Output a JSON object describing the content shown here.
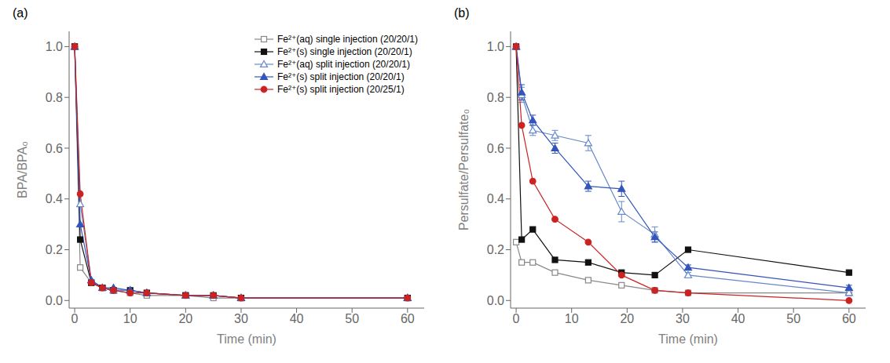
{
  "chart_data": [
    {
      "type": "line",
      "title": "(a)",
      "x_label": "Time (min)",
      "y_label": "BPA/BPA₀",
      "x": [
        0,
        1,
        3,
        5,
        7,
        10,
        13,
        20,
        25,
        30,
        60
      ],
      "series": [
        {
          "name": "Fe²⁺(aq) single injection (20/20/1)",
          "color": "#888888",
          "marker": "square_open",
          "values": [
            1.0,
            0.13,
            0.07,
            0.05,
            0.04,
            0.03,
            0.02,
            0.02,
            0.01,
            0.01,
            0.01
          ]
        },
        {
          "name": "Fe²⁺(s) single injection (20/20/1)",
          "color": "#111111",
          "marker": "square",
          "values": [
            1.0,
            0.24,
            0.07,
            0.05,
            0.04,
            0.04,
            0.03,
            0.02,
            0.02,
            0.01,
            0.01
          ]
        },
        {
          "name": "Fe²⁺(aq) split injection (20/20/1)",
          "color": "#6688cc",
          "marker": "triangle_open",
          "values": [
            1.0,
            0.38,
            0.08,
            0.05,
            0.04,
            0.04,
            0.03,
            0.02,
            0.02,
            0.01,
            0.01
          ]
        },
        {
          "name": "Fe²⁺(s) split injection (20/20/1)",
          "color": "#3355bb",
          "marker": "triangle",
          "values": [
            1.0,
            0.3,
            0.08,
            0.05,
            0.05,
            0.04,
            0.03,
            0.02,
            0.02,
            0.01,
            0.01
          ]
        },
        {
          "name": "Fe²⁺(s) split injection (20/25/1)",
          "color": "#cc2222",
          "marker": "circle",
          "values": [
            1.0,
            0.42,
            0.07,
            0.05,
            0.04,
            0.03,
            0.03,
            0.02,
            0.02,
            0.01,
            0.01
          ]
        }
      ],
      "xlim": [
        -1,
        63
      ],
      "xticks": [
        0,
        10,
        20,
        30,
        40,
        50,
        60
      ],
      "ylim": [
        -0.03,
        1.06
      ],
      "yticks": [
        {
          "value": 0,
          "label": "0.0"
        },
        0.2,
        0.4,
        0.6,
        0.8,
        {
          "value": 1,
          "label": "1.0"
        }
      ],
      "grid": false,
      "legend": "upper right"
    },
    {
      "type": "line",
      "title": "(b)",
      "x_label": "Time (min)",
      "y_label": "Persulfate/Persulfate₀",
      "x": [
        0,
        1,
        3,
        7,
        13,
        19,
        25,
        31,
        60
      ],
      "series": [
        {
          "name": "Fe²⁺(aq) single injection (20/20/1)",
          "color": "#888888",
          "marker": "square_open",
          "values": [
            0.23,
            0.15,
            0.15,
            0.11,
            0.08,
            0.06,
            0.04,
            0.03,
            0.03
          ]
        },
        {
          "name": "Fe²⁺(s) single injection (20/20/1)",
          "color": "#111111",
          "marker": "square",
          "values": [
            1.0,
            0.24,
            0.28,
            0.16,
            0.15,
            0.11,
            0.1,
            0.2,
            0.11
          ]
        },
        {
          "name": "Fe²⁺(aq) split injection (20/20/1)",
          "color": "#6688cc",
          "marker": "triangle_open",
          "values": [
            1.0,
            0.81,
            0.67,
            0.65,
            0.62,
            0.35,
            0.26,
            0.1,
            0.03
          ],
          "errors": [
            0.0,
            0.03,
            0.02,
            0.02,
            0.03,
            0.04,
            0.03,
            0.01,
            0.01
          ]
        },
        {
          "name": "Fe²⁺(s) split injection (20/20/1)",
          "color": "#3355bb",
          "marker": "triangle",
          "values": [
            1.0,
            0.82,
            0.71,
            0.6,
            0.45,
            0.44,
            0.25,
            0.13,
            0.05
          ],
          "errors": [
            0.0,
            0.03,
            0.02,
            0.02,
            0.02,
            0.03,
            0.02,
            0.01,
            0.01
          ]
        },
        {
          "name": "Fe²⁺(s) split injection (20/25/1)",
          "color": "#cc2222",
          "marker": "circle",
          "values": [
            1.0,
            0.69,
            0.47,
            0.32,
            0.23,
            0.1,
            0.04,
            0.03,
            0.0
          ]
        }
      ],
      "xlim": [
        -1,
        63
      ],
      "xticks": [
        0,
        10,
        20,
        30,
        40,
        50,
        60
      ],
      "ylim": [
        -0.03,
        1.06
      ],
      "yticks": [
        {
          "value": 0,
          "label": "0.0"
        },
        0.2,
        0.4,
        0.6,
        0.8,
        {
          "value": 1,
          "label": "1.0"
        }
      ],
      "grid": false
    }
  ]
}
